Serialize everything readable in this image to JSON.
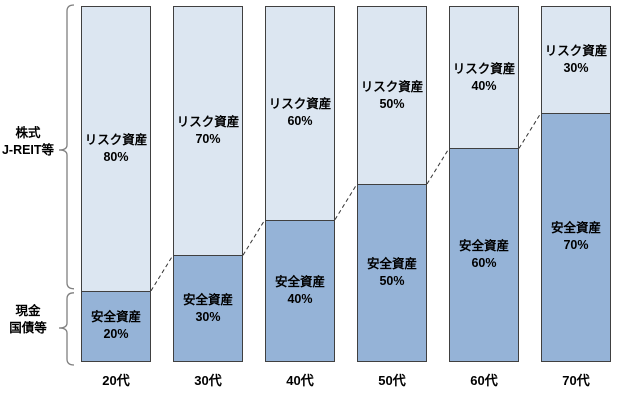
{
  "chart_data": {
    "type": "bar",
    "stacked": true,
    "orientation": "vertical",
    "categories": [
      "20代",
      "30代",
      "40代",
      "50代",
      "60代",
      "70代"
    ],
    "series": [
      {
        "name": "安全資産",
        "values": [
          20,
          30,
          40,
          50,
          60,
          70
        ],
        "color": "#95b3d7"
      },
      {
        "name": "リスク資産",
        "values": [
          80,
          70,
          60,
          50,
          40,
          30
        ],
        "color": "#dce6f1"
      }
    ],
    "value_suffix": "%",
    "ylim": [
      0,
      100
    ],
    "grid": false,
    "legend": "none",
    "annotations": "dashed connector lines between segment boundaries of adjacent bars"
  },
  "side_annotations": {
    "risk_group": [
      "株式",
      "J-REIT等"
    ],
    "safe_group": [
      "現金",
      "国債等"
    ]
  },
  "colors": {
    "risk_fill": "#dce6f1",
    "safe_fill": "#95b3d7",
    "bar_border": "#404040",
    "brace": "#808080",
    "dash_line": "#333333",
    "text": "#000000",
    "background": "#ffffff"
  }
}
